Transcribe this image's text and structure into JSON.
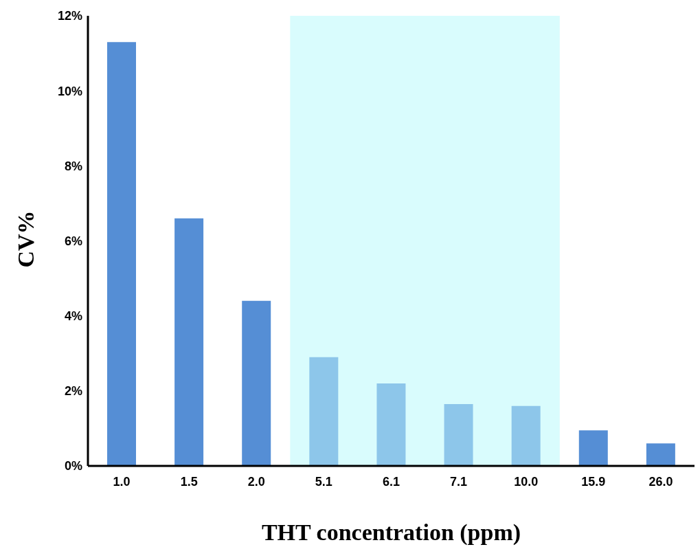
{
  "chart_data": {
    "type": "bar",
    "xlabel": "THT concentration (ppm)",
    "ylabel": "CV%",
    "categories": [
      "1.0",
      "1.5",
      "2.0",
      "5.1",
      "6.1",
      "7.1",
      "10.0",
      "15.9",
      "26.0"
    ],
    "values": [
      11.3,
      6.6,
      4.4,
      2.9,
      2.2,
      1.65,
      1.6,
      0.95,
      0.6
    ],
    "colors": [
      "#558ed5",
      "#558ed5",
      "#558ed5",
      "#8dc6ea",
      "#8dc6ea",
      "#8dc6ea",
      "#8dc6ea",
      "#558ed5",
      "#558ed5"
    ],
    "ylim": [
      0,
      12
    ],
    "yticks": [
      {
        "value": 0,
        "label": "0%"
      },
      {
        "value": 2,
        "label": "2%"
      },
      {
        "value": 4,
        "label": "4%"
      },
      {
        "value": 6,
        "label": "6%"
      },
      {
        "value": 8,
        "label": "8%"
      },
      {
        "value": 10,
        "label": "10%"
      },
      {
        "value": 12,
        "label": "12%"
      }
    ],
    "bands": [
      {
        "axis": "x",
        "from": "5.1",
        "to": "10.0",
        "color": "#d9fcfd"
      }
    ],
    "grid": false,
    "legend": false
  }
}
